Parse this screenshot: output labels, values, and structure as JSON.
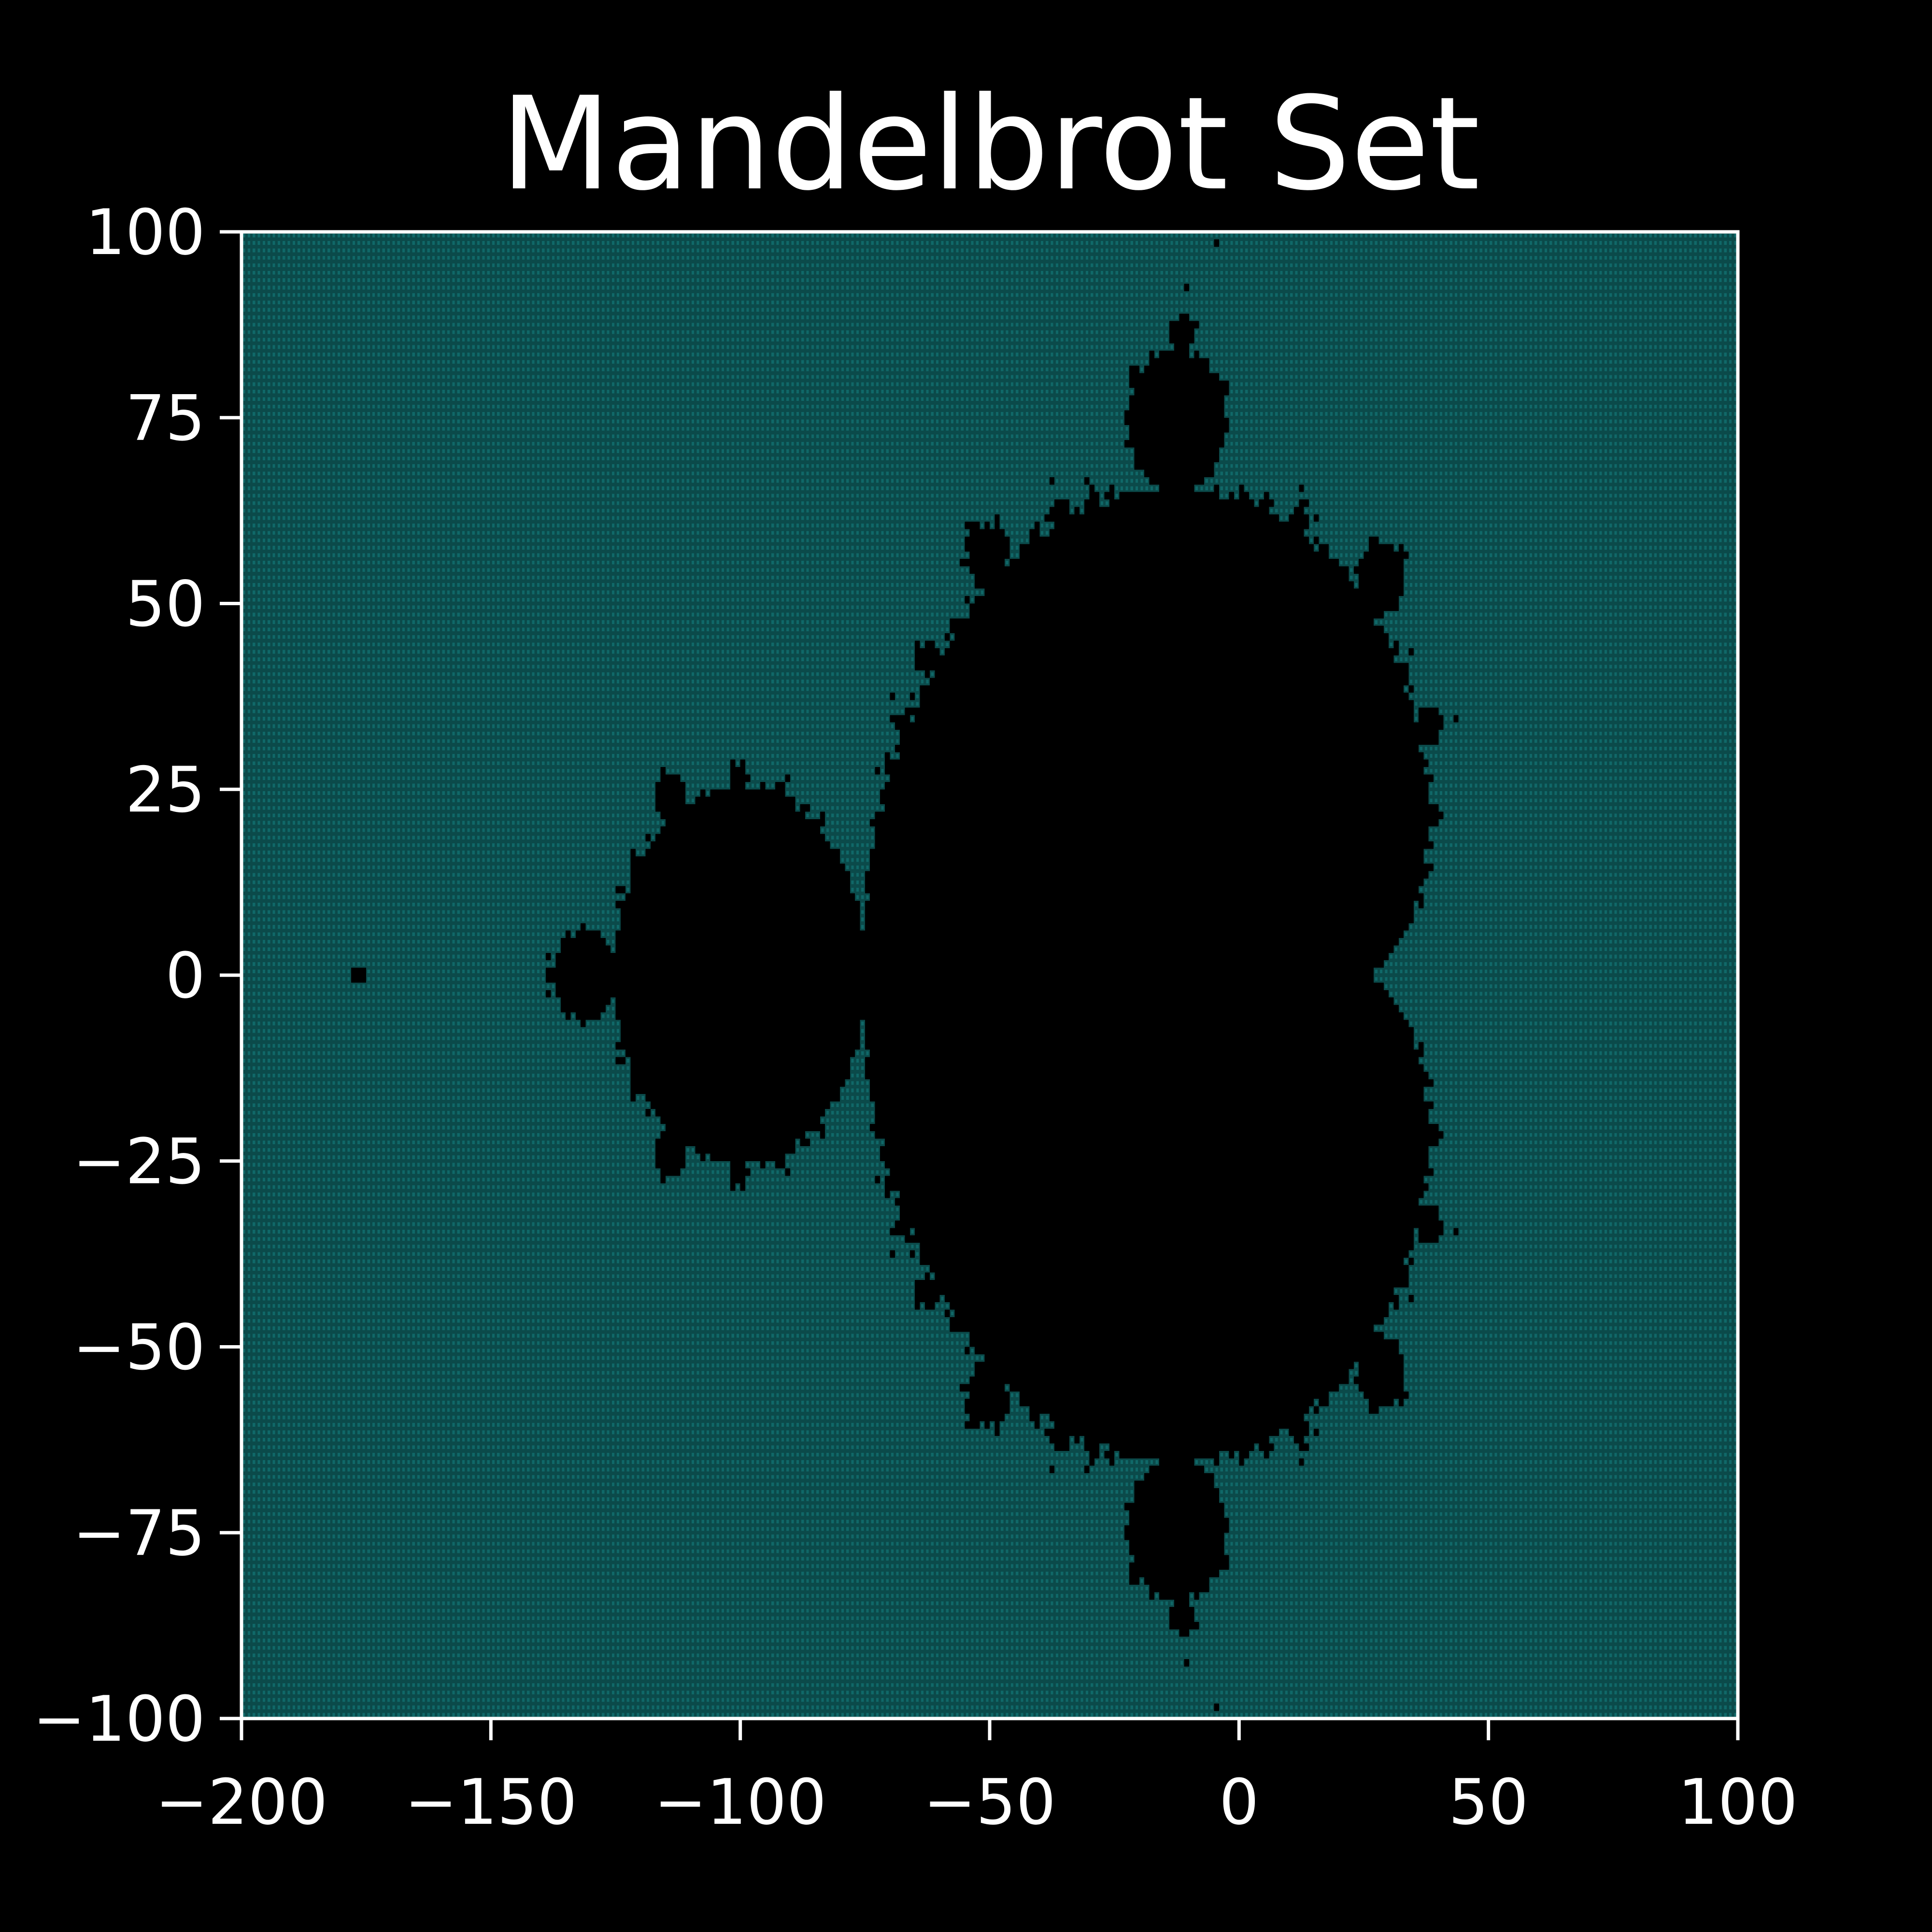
{
  "chart_data": {
    "type": "heatmap",
    "title": "Mandelbrot Set",
    "xlabel": "",
    "ylabel": "",
    "xlim": [
      -200,
      100
    ],
    "ylim": [
      -100,
      100
    ],
    "x_ticks": [
      -200,
      -150,
      -100,
      -50,
      0,
      50,
      100
    ],
    "y_ticks": [
      -100,
      -75,
      -50,
      -25,
      0,
      25,
      50,
      75,
      100
    ],
    "x_tick_labels": [
      "−200",
      "−150",
      "−100",
      "−50",
      "0",
      "50",
      "100"
    ],
    "y_tick_labels": [
      "−100",
      "−75",
      "−50",
      "−25",
      "0",
      "25",
      "50",
      "75",
      "100"
    ],
    "grid": false,
    "legend": "none",
    "grid_resolution": [
      300,
      200
    ],
    "complex_plane_scale": 0.01,
    "max_iterations": 100,
    "colors": {
      "background": "#000000",
      "inside_set": "#000000",
      "outside_set": "#0b4a4a",
      "outside_set_dot": "#157a7a",
      "axes": "#ffffff",
      "text": "#ffffff"
    }
  }
}
